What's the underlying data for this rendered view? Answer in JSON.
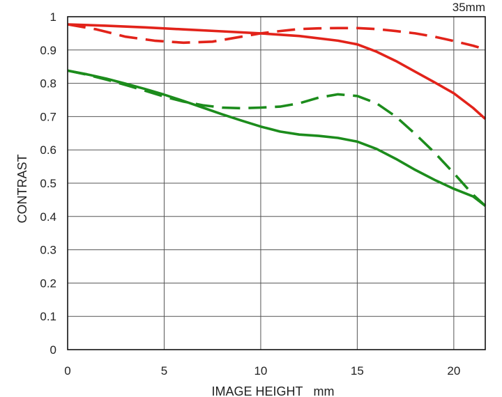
{
  "chart_data": {
    "type": "line",
    "title": "",
    "corner_label": "35mm",
    "xlabel": "IMAGE HEIGHT   mm",
    "ylabel": "CONTRAST",
    "xlim": [
      0,
      21.63
    ],
    "ylim": [
      0,
      1
    ],
    "x_ticks": [
      0,
      5,
      10,
      15,
      20
    ],
    "y_ticks": [
      0,
      0.1,
      0.2,
      0.3,
      0.4,
      0.5,
      0.6,
      0.7,
      0.8,
      0.9,
      1
    ],
    "x_tick_labels": [
      "0",
      "5",
      "10",
      "15",
      "20"
    ],
    "y_tick_labels": [
      "0",
      "0.1",
      "0.2",
      "0.3",
      "0.4",
      "0.5",
      "0.6",
      "0.7",
      "0.8",
      "0.9",
      "1"
    ],
    "grid": true,
    "legend": "none",
    "series": [
      {
        "color": "#e2231a",
        "style": "solid",
        "points": [
          [
            0,
            0.977
          ],
          [
            2,
            0.973
          ],
          [
            4,
            0.968
          ],
          [
            6,
            0.962
          ],
          [
            8,
            0.956
          ],
          [
            10,
            0.95
          ],
          [
            12,
            0.942
          ],
          [
            14,
            0.928
          ],
          [
            15,
            0.917
          ],
          [
            16,
            0.895
          ],
          [
            17,
            0.867
          ],
          [
            18,
            0.835
          ],
          [
            19,
            0.803
          ],
          [
            20,
            0.77
          ],
          [
            21,
            0.726
          ],
          [
            21.63,
            0.693
          ]
        ]
      },
      {
        "color": "#e2231a",
        "style": "dashed",
        "points": [
          [
            0,
            0.977
          ],
          [
            1.5,
            0.962
          ],
          [
            3,
            0.94
          ],
          [
            4.5,
            0.928
          ],
          [
            6,
            0.922
          ],
          [
            7.5,
            0.925
          ],
          [
            9,
            0.94
          ],
          [
            10,
            0.95
          ],
          [
            11,
            0.957
          ],
          [
            12,
            0.963
          ],
          [
            13,
            0.965
          ],
          [
            14,
            0.966
          ],
          [
            15,
            0.966
          ],
          [
            16,
            0.963
          ],
          [
            17,
            0.957
          ],
          [
            18,
            0.95
          ],
          [
            19,
            0.94
          ],
          [
            20,
            0.927
          ],
          [
            21,
            0.913
          ],
          [
            21.63,
            0.902
          ]
        ]
      },
      {
        "color": "#1c8c1c",
        "style": "solid",
        "points": [
          [
            0,
            0.838
          ],
          [
            1,
            0.827
          ],
          [
            2,
            0.814
          ],
          [
            3,
            0.799
          ],
          [
            4,
            0.783
          ],
          [
            5,
            0.766
          ],
          [
            6,
            0.747
          ],
          [
            7,
            0.727
          ],
          [
            8,
            0.707
          ],
          [
            9,
            0.688
          ],
          [
            10,
            0.67
          ],
          [
            11,
            0.655
          ],
          [
            12,
            0.646
          ],
          [
            13,
            0.642
          ],
          [
            14,
            0.636
          ],
          [
            15,
            0.625
          ],
          [
            16,
            0.603
          ],
          [
            17,
            0.573
          ],
          [
            18,
            0.54
          ],
          [
            19,
            0.51
          ],
          [
            20,
            0.483
          ],
          [
            21,
            0.46
          ],
          [
            21.63,
            0.432
          ]
        ]
      },
      {
        "color": "#1c8c1c",
        "style": "dashed",
        "points": [
          [
            0,
            0.838
          ],
          [
            1,
            0.826
          ],
          [
            2,
            0.811
          ],
          [
            3,
            0.795
          ],
          [
            4,
            0.778
          ],
          [
            5,
            0.76
          ],
          [
            6,
            0.745
          ],
          [
            7,
            0.734
          ],
          [
            8,
            0.727
          ],
          [
            9,
            0.725
          ],
          [
            10,
            0.727
          ],
          [
            11,
            0.73
          ],
          [
            12,
            0.74
          ],
          [
            13,
            0.757
          ],
          [
            14,
            0.767
          ],
          [
            15,
            0.762
          ],
          [
            16,
            0.74
          ],
          [
            17,
            0.7
          ],
          [
            18,
            0.648
          ],
          [
            19,
            0.592
          ],
          [
            20,
            0.53
          ],
          [
            21,
            0.465
          ],
          [
            21.63,
            0.432
          ]
        ]
      }
    ]
  }
}
